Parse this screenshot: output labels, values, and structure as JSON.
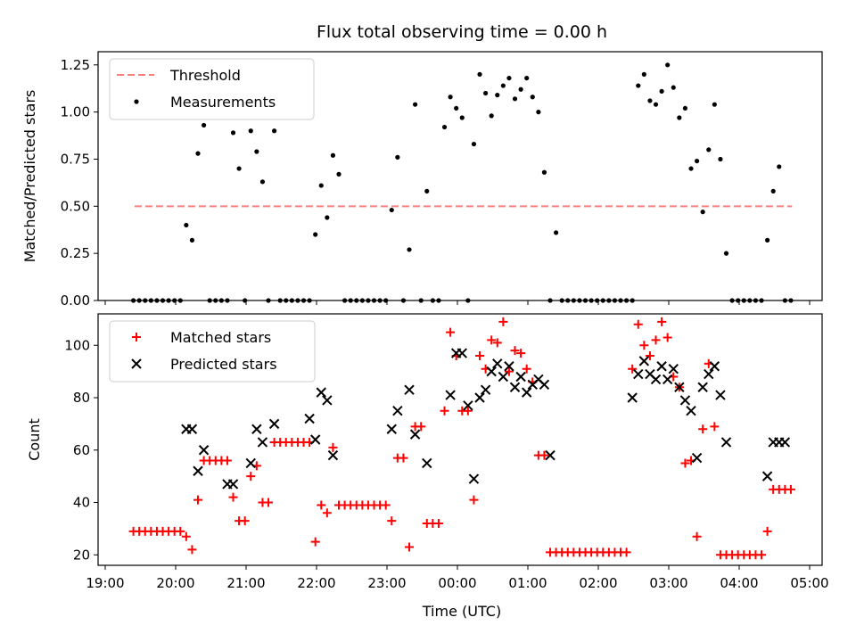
{
  "chart_data": {
    "title": "Flux total observing time = 0.00 h",
    "xlabel": "Time (UTC)",
    "x_ticks": [
      "19:00",
      "20:00",
      "21:00",
      "22:00",
      "23:00",
      "00:00",
      "01:00",
      "02:00",
      "03:00",
      "04:00",
      "05:00"
    ],
    "panels": [
      {
        "type": "scatter",
        "ylabel": "Matched/Predicted stars",
        "ylim": [
          0,
          1.32
        ],
        "y_ticks": [
          "0.00",
          "0.25",
          "0.50",
          "0.75",
          "1.00",
          "1.25"
        ],
        "legend_position": "top-left",
        "series": [
          {
            "name": "Threshold",
            "kind": "dashed-line",
            "color": "#ff7f7f",
            "x": [
              "19:25",
              "04:45"
            ],
            "values": [
              0.5,
              0.5
            ]
          },
          {
            "name": "Measurements",
            "kind": "dot",
            "color": "#000000",
            "x": [
              "19:24",
              "19:29",
              "19:34",
              "19:39",
              "19:44",
              "19:49",
              "19:54",
              "19:59",
              "20:04",
              "20:09",
              "20:14",
              "20:19",
              "20:24",
              "20:29",
              "20:34",
              "20:39",
              "20:44",
              "20:49",
              "20:54",
              "20:59",
              "21:04",
              "21:09",
              "21:14",
              "21:19",
              "21:24",
              "21:29",
              "21:34",
              "21:39",
              "21:44",
              "21:49",
              "21:54",
              "21:59",
              "22:04",
              "22:09",
              "22:14",
              "22:19",
              "22:24",
              "22:29",
              "22:34",
              "22:39",
              "22:44",
              "22:49",
              "22:54",
              "22:59",
              "23:04",
              "23:09",
              "23:14",
              "23:19",
              "23:24",
              "23:29",
              "23:34",
              "23:39",
              "23:44",
              "23:49",
              "23:54",
              "23:59",
              "00:04",
              "00:09",
              "00:14",
              "00:19",
              "00:24",
              "00:29",
              "00:34",
              "00:39",
              "00:44",
              "00:49",
              "00:54",
              "00:59",
              "01:04",
              "01:09",
              "01:14",
              "01:19",
              "01:24",
              "01:29",
              "01:34",
              "01:39",
              "01:44",
              "01:49",
              "01:54",
              "01:59",
              "02:04",
              "02:09",
              "02:14",
              "02:19",
              "02:24",
              "02:29",
              "02:34",
              "02:39",
              "02:44",
              "02:49",
              "02:54",
              "02:59",
              "03:04",
              "03:09",
              "03:14",
              "03:19",
              "03:24",
              "03:29",
              "03:34",
              "03:39",
              "03:44",
              "03:49",
              "03:54",
              "03:59",
              "04:04",
              "04:09",
              "04:14",
              "04:19",
              "04:24",
              "04:29",
              "04:34",
              "04:39",
              "04:44"
            ],
            "values": [
              0,
              0,
              0,
              0,
              0,
              0,
              0,
              0,
              0,
              0.4,
              0.32,
              0.78,
              0.93,
              0,
              0,
              0,
              0,
              0.89,
              0.7,
              0,
              0.9,
              0.79,
              0.63,
              0,
              0.9,
              0,
              0,
              0,
              0,
              0,
              0,
              0.35,
              0.61,
              0.44,
              0.77,
              0.67,
              0,
              0,
              0,
              0,
              0,
              0,
              0,
              0,
              0.48,
              0.76,
              0,
              0.27,
              1.04,
              0,
              0.58,
              0,
              0,
              0.92,
              1.08,
              1.02,
              0.97,
              0,
              0.83,
              1.2,
              1.1,
              0.98,
              1.09,
              1.14,
              1.18,
              1.07,
              1.12,
              1.18,
              1.08,
              1.0,
              0.68,
              0,
              0.36,
              0,
              0,
              0,
              0,
              0,
              0,
              0,
              0,
              0,
              0,
              0,
              0,
              0,
              1.14,
              1.2,
              1.06,
              1.04,
              1.11,
              1.25,
              1.13,
              0.97,
              1.02,
              0.7,
              0.74,
              0.47,
              0.8,
              1.04,
              0.75,
              0.25,
              0,
              0,
              0,
              0,
              0,
              0,
              0.32,
              0.58,
              0.71,
              0,
              0
            ]
          }
        ]
      },
      {
        "type": "scatter",
        "ylabel": "Count",
        "ylim": [
          16,
          112
        ],
        "y_ticks": [
          "20",
          "40",
          "60",
          "80",
          "100"
        ],
        "legend_position": "top-left",
        "series": [
          {
            "name": "Matched stars",
            "marker": "plus",
            "color": "#ff0000",
            "x": [
              "19:24",
              "19:29",
              "19:34",
              "19:39",
              "19:44",
              "19:49",
              "19:54",
              "19:59",
              "20:04",
              "20:09",
              "20:14",
              "20:19",
              "20:24",
              "20:29",
              "20:34",
              "20:39",
              "20:44",
              "20:49",
              "20:54",
              "20:59",
              "21:04",
              "21:09",
              "21:14",
              "21:19",
              "21:24",
              "21:29",
              "21:34",
              "21:39",
              "21:44",
              "21:49",
              "21:54",
              "21:59",
              "22:04",
              "22:09",
              "22:14",
              "22:19",
              "22:24",
              "22:29",
              "22:34",
              "22:39",
              "22:44",
              "22:49",
              "22:54",
              "22:59",
              "23:04",
              "23:09",
              "23:14",
              "23:19",
              "23:24",
              "23:29",
              "23:34",
              "23:39",
              "23:44",
              "23:49",
              "23:54",
              "23:59",
              "00:04",
              "00:09",
              "00:14",
              "00:19",
              "00:24",
              "00:29",
              "00:34",
              "00:39",
              "00:44",
              "00:49",
              "00:54",
              "00:59",
              "01:04",
              "01:09",
              "01:14",
              "01:19",
              "01:24",
              "01:29",
              "01:34",
              "01:39",
              "01:44",
              "01:49",
              "01:54",
              "01:59",
              "02:04",
              "02:09",
              "02:14",
              "02:19",
              "02:24",
              "02:29",
              "02:34",
              "02:39",
              "02:44",
              "02:49",
              "02:54",
              "02:59",
              "03:04",
              "03:09",
              "03:14",
              "03:19",
              "03:24",
              "03:29",
              "03:34",
              "03:39",
              "03:44",
              "03:49",
              "03:54",
              "03:59",
              "04:04",
              "04:09",
              "04:14",
              "04:19",
              "04:24",
              "04:29",
              "04:34",
              "04:39",
              "04:44"
            ],
            "values": [
              29,
              29,
              29,
              29,
              29,
              29,
              29,
              29,
              29,
              27,
              22,
              41,
              56,
              56,
              56,
              56,
              56,
              42,
              33,
              33,
              50,
              54,
              40,
              40,
              63,
              63,
              63,
              63,
              63,
              63,
              63,
              25,
              39,
              36,
              61,
              39,
              39,
              39,
              39,
              39,
              39,
              39,
              39,
              39,
              33,
              57,
              57,
              23,
              69,
              69,
              32,
              32,
              32,
              75,
              105,
              96,
              75,
              75,
              41,
              96,
              91,
              102,
              101,
              109,
              90,
              98,
              97,
              91,
              86,
              58,
              58,
              21,
              21,
              21,
              21,
              21,
              21,
              21,
              21,
              21,
              21,
              21,
              21,
              21,
              21,
              91,
              108,
              100,
              96,
              102,
              109,
              103,
              88,
              84,
              55,
              56,
              27,
              68,
              93,
              69,
              20,
              20,
              20,
              20,
              20,
              20,
              20,
              20,
              29,
              45,
              45,
              45,
              45
            ]
          },
          {
            "name": "Predicted stars",
            "marker": "cross",
            "color": "#000000",
            "x": [
              "20:09",
              "20:14",
              "20:19",
              "20:24",
              "20:44",
              "20:49",
              "21:04",
              "21:09",
              "21:14",
              "21:24",
              "21:54",
              "21:59",
              "22:04",
              "22:09",
              "22:14",
              "23:04",
              "23:09",
              "23:19",
              "23:24",
              "23:34",
              "23:54",
              "23:59",
              "00:04",
              "00:09",
              "00:14",
              "00:19",
              "00:24",
              "00:29",
              "00:34",
              "00:39",
              "00:44",
              "00:49",
              "00:54",
              "00:59",
              "01:04",
              "01:09",
              "01:14",
              "01:19",
              "02:29",
              "02:34",
              "02:39",
              "02:44",
              "02:49",
              "02:54",
              "02:59",
              "03:04",
              "03:09",
              "03:14",
              "03:19",
              "03:24",
              "03:29",
              "03:34",
              "03:39",
              "03:44",
              "03:49",
              "04:24",
              "04:29",
              "04:34",
              "04:39"
            ],
            "values": [
              68,
              68,
              52,
              60,
              47,
              47,
              55,
              68,
              63,
              70,
              72,
              64,
              82,
              79,
              58,
              68,
              75,
              83,
              66,
              55,
              81,
              97,
              97,
              77,
              49,
              80,
              83,
              90,
              93,
              88,
              92,
              84,
              88,
              82,
              85,
              87,
              85,
              58,
              80,
              89,
              94,
              89,
              87,
              92,
              87,
              91,
              84,
              79,
              75,
              57,
              84,
              89,
              92,
              81,
              63,
              50,
              63,
              63,
              63
            ]
          }
        ]
      }
    ]
  }
}
